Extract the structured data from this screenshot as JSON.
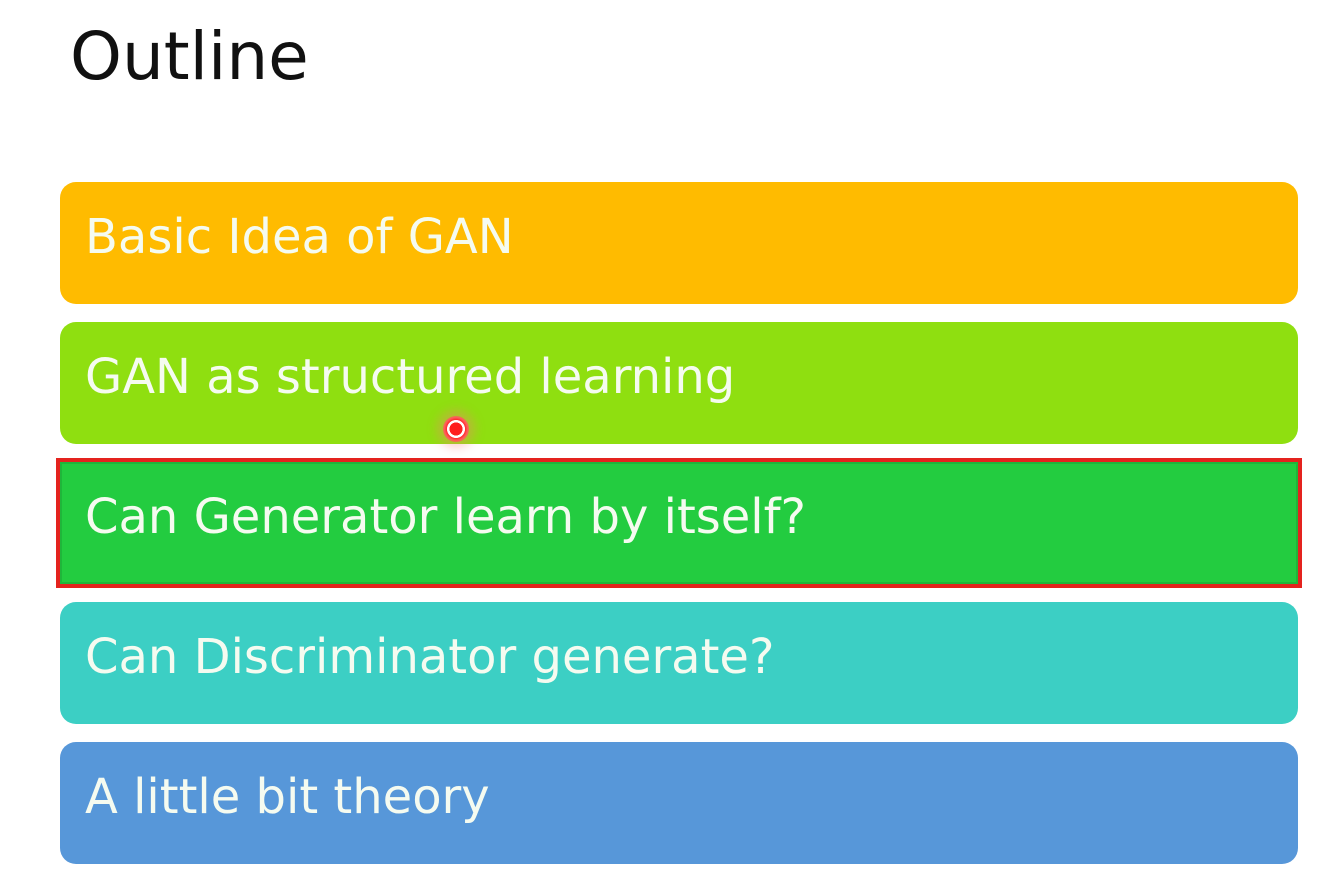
{
  "slide": {
    "title": "Outline",
    "items": [
      {
        "label": "Basic Idea of GAN",
        "color": "#ffbb00"
      },
      {
        "label": "GAN as structured learning",
        "color": "#8fdf10"
      },
      {
        "label": "Can Generator learn by itself?",
        "color": "#23cc40",
        "selected": true
      },
      {
        "label": "Can Discriminator generate?",
        "color": "#3ccfc4"
      },
      {
        "label": "A little bit theory",
        "color": "#5797d9"
      }
    ],
    "highlight_color": "#e4231e",
    "pointer_color": "#ff1e1e"
  }
}
